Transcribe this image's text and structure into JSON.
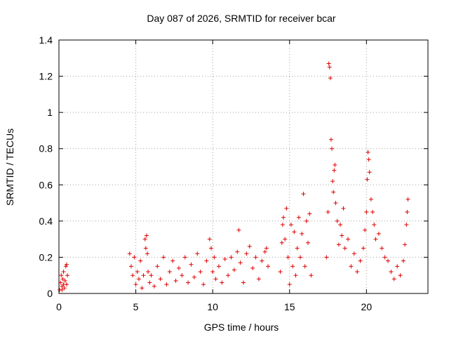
{
  "chart_data": {
    "type": "scatter",
    "title": "Day 087 of 2026, SRMTID for receiver bcar",
    "xlabel": "GPS time / hours",
    "ylabel": "SRMTID / TECUs",
    "xlim": [
      0,
      24
    ],
    "ylim": [
      0,
      1.4
    ],
    "x_ticks": [
      0,
      5,
      10,
      15,
      20
    ],
    "x_tick_labels": [
      "0",
      "5",
      "10",
      "15",
      "20"
    ],
    "y_ticks": [
      0,
      0.2,
      0.4,
      0.6,
      0.8,
      1.0,
      1.2,
      1.4
    ],
    "y_tick_labels": [
      "0",
      "0.2",
      "0.4",
      "0.6",
      "0.8",
      "1",
      "1.2",
      "1.4"
    ],
    "grid": true,
    "marker": "+",
    "color": "#e00000",
    "series": [
      {
        "name": "SRMTID",
        "points": [
          [
            0.05,
            0.02
          ],
          [
            0.1,
            0.06
          ],
          [
            0.15,
            0.1
          ],
          [
            0.2,
            0.04
          ],
          [
            0.25,
            0.08
          ],
          [
            0.3,
            0.12
          ],
          [
            0.35,
            0.03
          ],
          [
            0.4,
            0.07
          ],
          [
            0.45,
            0.15
          ],
          [
            0.5,
            0.05
          ],
          [
            0.55,
            0.1
          ],
          [
            0.2,
            0.02
          ],
          [
            0.3,
            0.05
          ],
          [
            0.5,
            0.16
          ],
          [
            4.6,
            0.22
          ],
          [
            4.7,
            0.15
          ],
          [
            4.8,
            0.1
          ],
          [
            4.9,
            0.2
          ],
          [
            5.0,
            0.05
          ],
          [
            5.1,
            0.12
          ],
          [
            5.2,
            0.08
          ],
          [
            5.3,
            0.18
          ],
          [
            5.4,
            0.03
          ],
          [
            5.5,
            0.1
          ],
          [
            5.6,
            0.3
          ],
          [
            5.65,
            0.25
          ],
          [
            5.7,
            0.32
          ],
          [
            5.75,
            0.22
          ],
          [
            5.8,
            0.12
          ],
          [
            5.9,
            0.06
          ],
          [
            6.0,
            0.1
          ],
          [
            6.2,
            0.04
          ],
          [
            6.4,
            0.15
          ],
          [
            6.6,
            0.08
          ],
          [
            6.8,
            0.2
          ],
          [
            7.0,
            0.05
          ],
          [
            7.2,
            0.12
          ],
          [
            7.4,
            0.18
          ],
          [
            7.6,
            0.07
          ],
          [
            7.8,
            0.14
          ],
          [
            8.0,
            0.1
          ],
          [
            8.2,
            0.2
          ],
          [
            8.4,
            0.06
          ],
          [
            8.6,
            0.16
          ],
          [
            8.8,
            0.09
          ],
          [
            9.0,
            0.22
          ],
          [
            9.2,
            0.12
          ],
          [
            9.4,
            0.05
          ],
          [
            9.6,
            0.18
          ],
          [
            9.8,
            0.3
          ],
          [
            9.9,
            0.25
          ],
          [
            10.0,
            0.12
          ],
          [
            10.1,
            0.2
          ],
          [
            10.2,
            0.08
          ],
          [
            10.4,
            0.15
          ],
          [
            10.6,
            0.06
          ],
          [
            10.8,
            0.19
          ],
          [
            11.0,
            0.1
          ],
          [
            11.2,
            0.2
          ],
          [
            11.4,
            0.13
          ],
          [
            11.6,
            0.23
          ],
          [
            11.7,
            0.35
          ],
          [
            11.8,
            0.17
          ],
          [
            12.0,
            0.06
          ],
          [
            12.2,
            0.22
          ],
          [
            12.4,
            0.26
          ],
          [
            12.6,
            0.14
          ],
          [
            12.8,
            0.2
          ],
          [
            13.0,
            0.08
          ],
          [
            13.2,
            0.18
          ],
          [
            13.4,
            0.23
          ],
          [
            13.5,
            0.25
          ],
          [
            13.6,
            0.15
          ],
          [
            14.4,
            0.12
          ],
          [
            14.5,
            0.28
          ],
          [
            14.55,
            0.38
          ],
          [
            14.6,
            0.42
          ],
          [
            14.7,
            0.3
          ],
          [
            14.8,
            0.47
          ],
          [
            14.9,
            0.2
          ],
          [
            15.0,
            0.05
          ],
          [
            15.1,
            0.38
          ],
          [
            15.2,
            0.15
          ],
          [
            15.3,
            0.34
          ],
          [
            15.4,
            0.1
          ],
          [
            15.5,
            0.25
          ],
          [
            15.6,
            0.42
          ],
          [
            15.7,
            0.2
          ],
          [
            15.8,
            0.33
          ],
          [
            15.9,
            0.55
          ],
          [
            16.0,
            0.15
          ],
          [
            16.1,
            0.4
          ],
          [
            16.2,
            0.28
          ],
          [
            16.3,
            0.44
          ],
          [
            16.4,
            0.1
          ],
          [
            17.4,
            0.2
          ],
          [
            17.5,
            0.45
          ],
          [
            17.55,
            1.27
          ],
          [
            17.6,
            1.25
          ],
          [
            17.65,
            1.19
          ],
          [
            17.7,
            0.85
          ],
          [
            17.75,
            0.8
          ],
          [
            17.8,
            0.62
          ],
          [
            17.85,
            0.56
          ],
          [
            17.9,
            0.68
          ],
          [
            17.95,
            0.71
          ],
          [
            18.0,
            0.5
          ],
          [
            18.1,
            0.4
          ],
          [
            18.2,
            0.27
          ],
          [
            18.3,
            0.38
          ],
          [
            18.4,
            0.32
          ],
          [
            18.5,
            0.47
          ],
          [
            18.6,
            0.25
          ],
          [
            18.8,
            0.3
          ],
          [
            19.0,
            0.15
          ],
          [
            19.2,
            0.22
          ],
          [
            19.4,
            0.12
          ],
          [
            19.6,
            0.18
          ],
          [
            19.8,
            0.25
          ],
          [
            19.9,
            0.35
          ],
          [
            20.0,
            0.45
          ],
          [
            20.05,
            0.63
          ],
          [
            20.1,
            0.78
          ],
          [
            20.15,
            0.74
          ],
          [
            20.2,
            0.67
          ],
          [
            20.3,
            0.52
          ],
          [
            20.4,
            0.45
          ],
          [
            20.5,
            0.38
          ],
          [
            20.6,
            0.3
          ],
          [
            20.8,
            0.33
          ],
          [
            21.0,
            0.25
          ],
          [
            21.2,
            0.2
          ],
          [
            21.4,
            0.18
          ],
          [
            21.6,
            0.12
          ],
          [
            21.8,
            0.08
          ],
          [
            22.0,
            0.15
          ],
          [
            22.2,
            0.1
          ],
          [
            22.4,
            0.18
          ],
          [
            22.5,
            0.27
          ],
          [
            22.6,
            0.38
          ],
          [
            22.65,
            0.45
          ],
          [
            22.7,
            0.52
          ]
        ]
      }
    ]
  }
}
